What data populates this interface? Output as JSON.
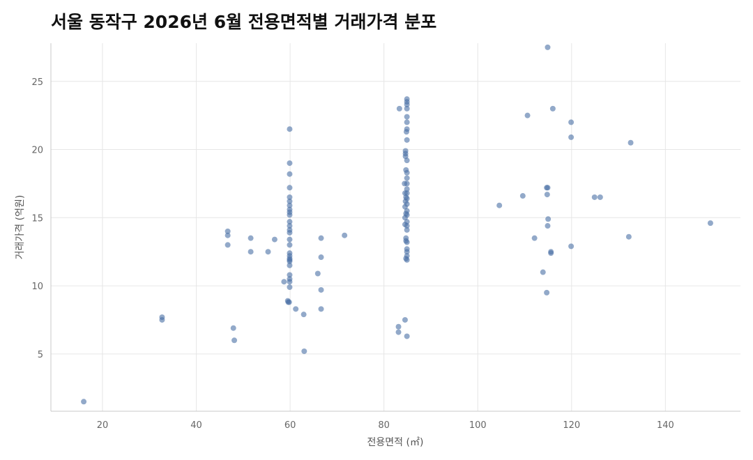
{
  "chart_data": {
    "type": "scatter",
    "title": "서울 동작구 2026년 6월 전용면적별 거래가격 분포",
    "xlabel": "전용면적 (㎡)",
    "ylabel": "거래가격 (억원)",
    "xlim": [
      9,
      156
    ],
    "ylim": [
      0.8,
      27.8
    ],
    "xticks": [
      20,
      40,
      60,
      80,
      100,
      120,
      140
    ],
    "yticks": [
      5,
      10,
      15,
      20,
      25
    ],
    "grid": true,
    "point_color": "#4a6fa5",
    "points": [
      [
        16,
        1.5
      ],
      [
        32.7,
        7.7
      ],
      [
        32.7,
        7.5
      ],
      [
        46.7,
        14.0
      ],
      [
        46.7,
        13.7
      ],
      [
        46.7,
        13.0
      ],
      [
        47.9,
        6.9
      ],
      [
        48.1,
        6.0
      ],
      [
        51.6,
        13.5
      ],
      [
        51.6,
        12.5
      ],
      [
        55.3,
        12.5
      ],
      [
        56.7,
        13.4
      ],
      [
        58.7,
        10.3
      ],
      [
        59.5,
        8.9
      ],
      [
        59.6,
        8.8
      ],
      [
        59.8,
        8.8
      ],
      [
        59.9,
        21.5
      ],
      [
        59.9,
        19.0
      ],
      [
        59.9,
        18.2
      ],
      [
        59.9,
        17.2
      ],
      [
        59.9,
        16.5
      ],
      [
        59.9,
        16.2
      ],
      [
        59.9,
        15.9
      ],
      [
        59.9,
        15.6
      ],
      [
        59.9,
        15.4
      ],
      [
        59.9,
        15.2
      ],
      [
        59.9,
        14.7
      ],
      [
        59.9,
        14.4
      ],
      [
        59.9,
        14.1
      ],
      [
        59.9,
        13.9
      ],
      [
        59.9,
        13.4
      ],
      [
        59.9,
        13.0
      ],
      [
        59.9,
        12.4
      ],
      [
        59.9,
        12.2
      ],
      [
        59.9,
        12.0
      ],
      [
        59.9,
        11.9
      ],
      [
        59.9,
        11.8
      ],
      [
        59.9,
        11.5
      ],
      [
        59.9,
        10.8
      ],
      [
        59.9,
        10.5
      ],
      [
        59.9,
        10.3
      ],
      [
        59.9,
        9.9
      ],
      [
        61.2,
        8.3
      ],
      [
        62.9,
        7.9
      ],
      [
        63.0,
        5.2
      ],
      [
        65.9,
        10.9
      ],
      [
        66.6,
        13.5
      ],
      [
        66.6,
        12.1
      ],
      [
        66.6,
        9.7
      ],
      [
        66.6,
        8.3
      ],
      [
        71.6,
        13.7
      ],
      [
        83.1,
        7.0
      ],
      [
        83.1,
        6.6
      ],
      [
        83.3,
        23.0
      ],
      [
        84.5,
        7.5
      ],
      [
        84.9,
        6.3
      ],
      [
        84.9,
        23.7
      ],
      [
        84.9,
        23.5
      ],
      [
        84.9,
        23.3
      ],
      [
        84.9,
        23.0
      ],
      [
        84.9,
        22.4
      ],
      [
        84.9,
        22.0
      ],
      [
        84.9,
        21.5
      ],
      [
        84.8,
        21.3
      ],
      [
        84.9,
        20.7
      ],
      [
        84.6,
        19.9
      ],
      [
        84.6,
        19.7
      ],
      [
        84.6,
        19.5
      ],
      [
        84.9,
        19.2
      ],
      [
        84.7,
        18.5
      ],
      [
        84.9,
        18.3
      ],
      [
        84.9,
        17.9
      ],
      [
        84.4,
        17.5
      ],
      [
        84.9,
        17.5
      ],
      [
        84.9,
        17.1
      ],
      [
        84.5,
        16.8
      ],
      [
        84.9,
        16.8
      ],
      [
        84.7,
        16.5
      ],
      [
        84.9,
        16.4
      ],
      [
        84.6,
        16.2
      ],
      [
        84.9,
        16.0
      ],
      [
        84.5,
        15.8
      ],
      [
        84.9,
        15.5
      ],
      [
        84.7,
        15.3
      ],
      [
        84.9,
        15.2
      ],
      [
        84.5,
        15.0
      ],
      [
        84.9,
        14.7
      ],
      [
        84.5,
        14.5
      ],
      [
        84.9,
        14.4
      ],
      [
        84.9,
        14.1
      ],
      [
        84.7,
        13.5
      ],
      [
        84.7,
        13.3
      ],
      [
        84.9,
        13.2
      ],
      [
        84.9,
        12.7
      ],
      [
        84.9,
        12.5
      ],
      [
        84.9,
        12.2
      ],
      [
        84.7,
        12.0
      ],
      [
        84.9,
        11.9
      ],
      [
        104.6,
        15.9
      ],
      [
        109.6,
        16.6
      ],
      [
        110.6,
        22.5
      ],
      [
        112.1,
        13.5
      ],
      [
        113.9,
        11.0
      ],
      [
        114.7,
        17.2
      ],
      [
        114.9,
        17.2
      ],
      [
        114.8,
        16.7
      ],
      [
        115.0,
        14.9
      ],
      [
        114.9,
        14.4
      ],
      [
        114.7,
        9.5
      ],
      [
        115.6,
        12.5
      ],
      [
        115.6,
        12.4
      ],
      [
        116.0,
        23.0
      ],
      [
        114.9,
        27.5
      ],
      [
        119.9,
        22.0
      ],
      [
        119.9,
        20.9
      ],
      [
        119.9,
        12.9
      ],
      [
        124.9,
        16.5
      ],
      [
        126.1,
        16.5
      ],
      [
        132.2,
        13.6
      ],
      [
        132.6,
        20.5
      ],
      [
        149.6,
        14.6
      ]
    ]
  }
}
